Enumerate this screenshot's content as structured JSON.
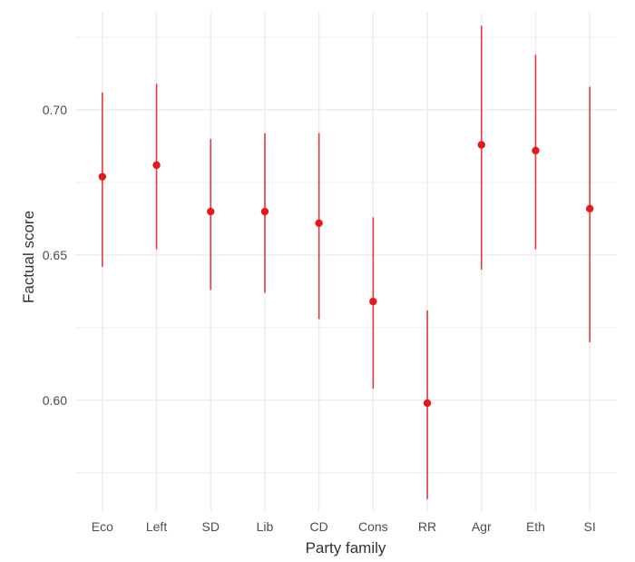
{
  "chart_data": {
    "type": "scatter",
    "subtype": "point-range",
    "title": "",
    "xlabel": "Party family",
    "ylabel": "Factual score",
    "categories": [
      "Eco",
      "Left",
      "SD",
      "Lib",
      "CD",
      "Cons",
      "RR",
      "Agr",
      "Eth",
      "SI"
    ],
    "series": [
      {
        "values": [
          0.677,
          0.681,
          0.665,
          0.665,
          0.661,
          0.634,
          0.599,
          0.688,
          0.686,
          0.666
        ],
        "lower": [
          0.646,
          0.652,
          0.638,
          0.637,
          0.628,
          0.604,
          0.566,
          0.645,
          0.652,
          0.62
        ],
        "upper": [
          0.706,
          0.709,
          0.69,
          0.692,
          0.692,
          0.663,
          0.631,
          0.729,
          0.719,
          0.708
        ]
      }
    ],
    "y_ticks": [
      "0.60",
      "0.65",
      "0.70"
    ],
    "ylim": [
      0.5618,
      0.7335
    ],
    "grid": true,
    "legend": "none",
    "colors": {
      "point": "#e31a1c",
      "errorbar": "#e03a3c",
      "grid": "#ebebeb"
    }
  }
}
